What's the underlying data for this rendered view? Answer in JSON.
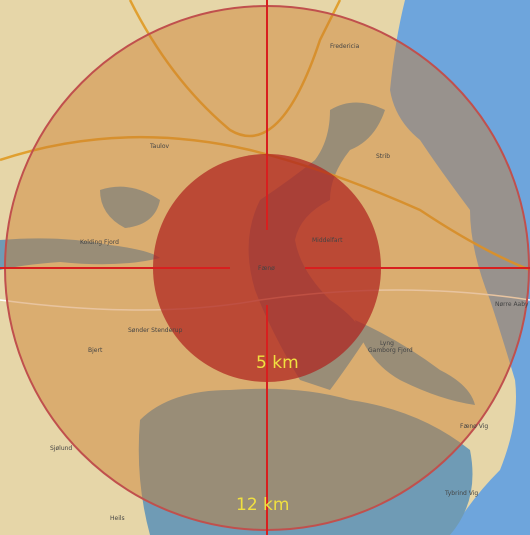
{
  "labels": {
    "inner_radius": "5 km",
    "outer_radius": "12 km"
  },
  "places": [
    "Fredericia",
    "Middelfart",
    "Taulov",
    "Strib",
    "Kolding Fjord",
    "Sønder Stenderup",
    "Gamborg Fjord",
    "Fænø",
    "Sjølund",
    "Heils",
    "Nørre Aaby",
    "Bjert",
    "Fænø Vig",
    "Tybrind Vig",
    "Lyng"
  ]
}
